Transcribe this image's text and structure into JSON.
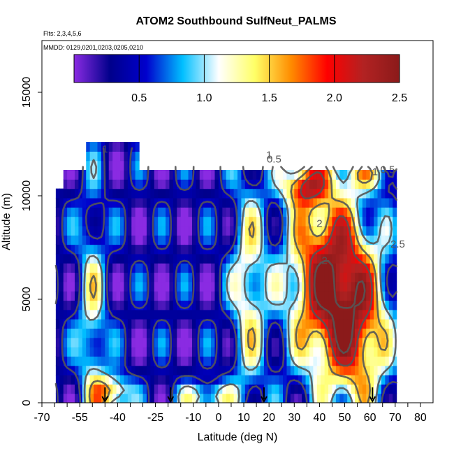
{
  "chart_data": {
    "type": "heatmap",
    "title": "ATOM2 Southbound SulfNeut_PALMS",
    "flights_note": "Flts: 2,3,4,5,6",
    "dates_note": "MMDD: 0129,0201,0203,0205,0210",
    "xlabel": "Latitude (deg N)",
    "ylabel": "Altitude (m)",
    "xlim": [
      -70,
      85
    ],
    "ylim": [
      0,
      17500
    ],
    "x_ticks": [
      -70,
      -55,
      -40,
      -25,
      -10,
      0,
      10,
      20,
      30,
      40,
      50,
      60,
      70,
      80
    ],
    "y_ticks": [
      0,
      5000,
      10000,
      15000
    ],
    "colorbar": {
      "min": 0,
      "max": 2.5,
      "ticks": [
        0.5,
        1.0,
        1.5,
        2.0,
        2.5
      ],
      "tick_labels": [
        "0.5",
        "1.0",
        "1.5",
        "2.0",
        "2.5"
      ],
      "colors": [
        "#8a2be2",
        "#00008b",
        "#0000cd",
        "#00bfff",
        "#ffffff",
        "#ffff66",
        "#ff8c00",
        "#ff0000",
        "#b22222",
        "#8b1a1a"
      ]
    },
    "contour_levels": [
      0.5,
      1.0,
      1.5,
      2.0,
      2.5
    ],
    "contour_labels": [
      {
        "text": "0.5",
        "lat": 22,
        "alt": 11600
      },
      {
        "text": "1",
        "lat": 62,
        "alt": 11000
      },
      {
        "text": "0.5",
        "lat": 67,
        "alt": 11100
      },
      {
        "text": "2",
        "lat": 40,
        "alt": 8500
      },
      {
        "text": "2",
        "lat": 42,
        "alt": 6700
      },
      {
        "text": "2.5",
        "lat": 71,
        "alt": 7500
      },
      {
        "text": "1",
        "lat": 20,
        "alt": 11800
      },
      {
        "text": "1",
        "lat": -45,
        "alt": 12100
      }
    ],
    "arrow_markers_lat": [
      -45,
      -19,
      18,
      61
    ],
    "grid": false
  }
}
